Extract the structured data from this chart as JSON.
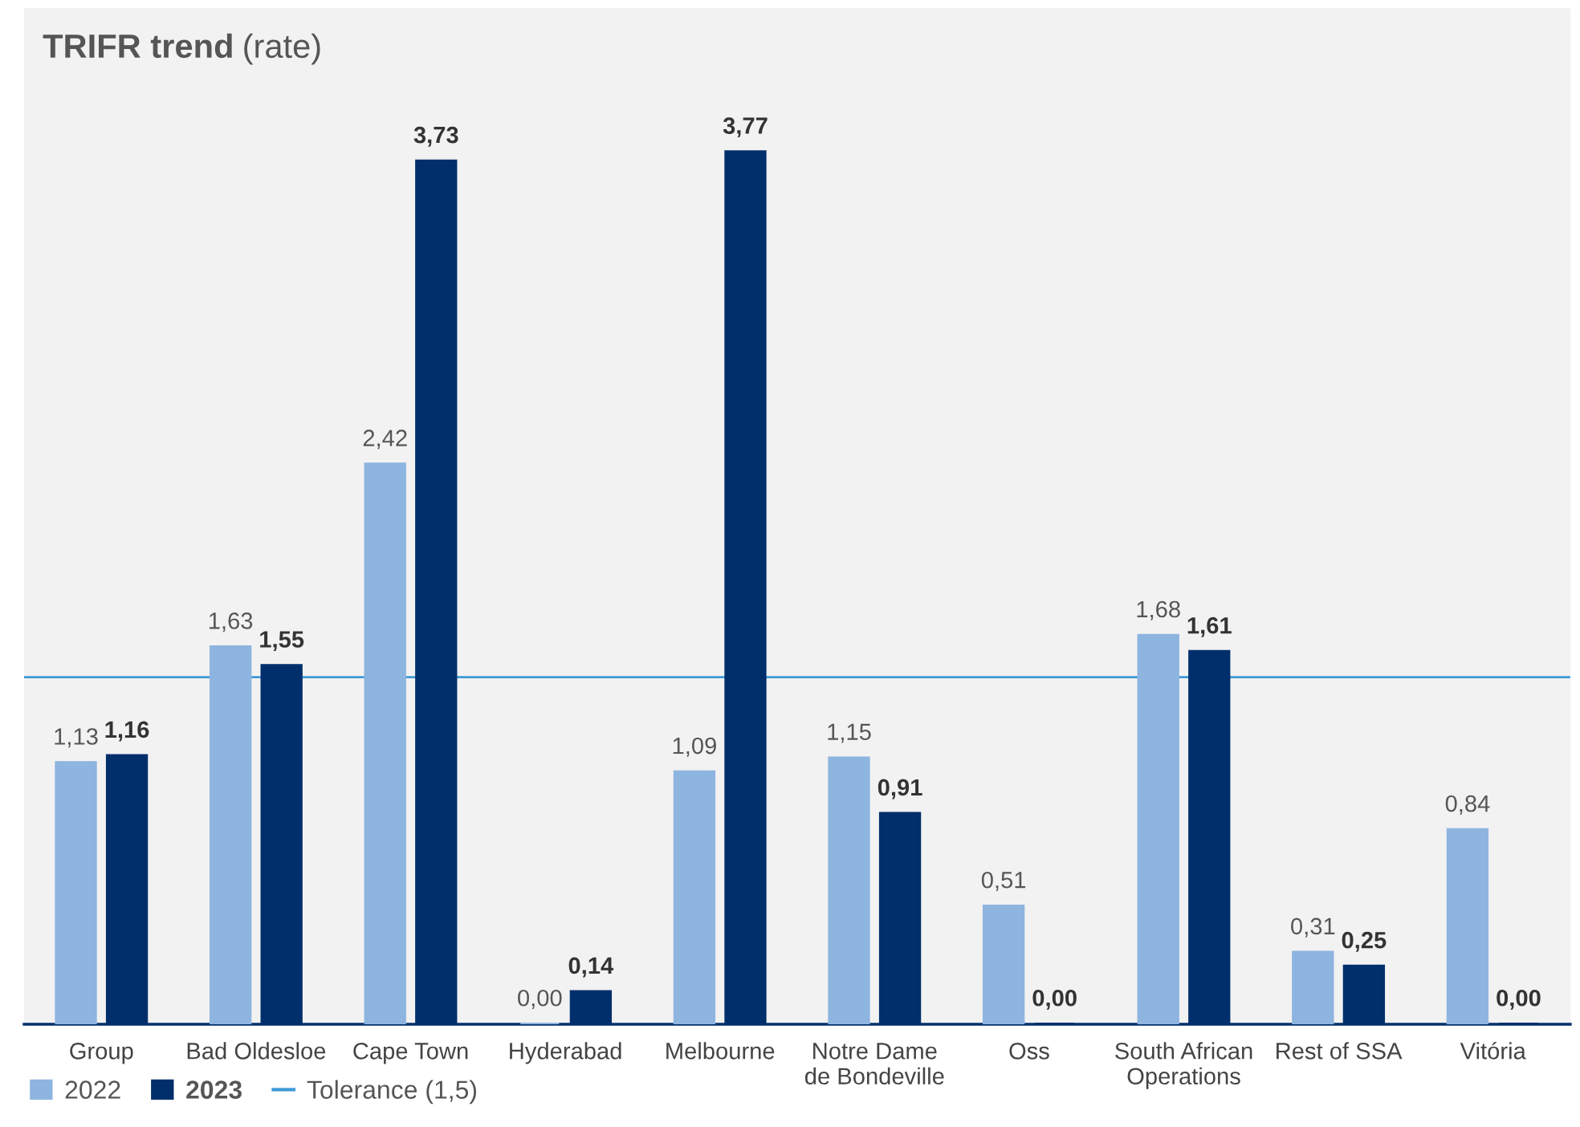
{
  "chart_data": {
    "type": "bar",
    "title": "TRIFR trend",
    "subtitle": "(rate)",
    "categories": [
      "Group",
      "Bad Oldesloe",
      "Cape Town",
      "Hyderabad",
      "Melbourne",
      "Notre Dame\nde Bondeville",
      "Oss",
      "South African\nOperations",
      "Rest of SSA",
      "Vitória"
    ],
    "series": [
      {
        "name": "2022",
        "color": "#8eb4e0",
        "values": [
          1.13,
          1.63,
          2.42,
          0.0,
          1.09,
          1.15,
          0.51,
          1.68,
          0.31,
          0.84
        ],
        "value_labels": [
          "1,13",
          "1,63",
          "2,42",
          "0,00",
          "1,09",
          "1,15",
          "0,51",
          "1,68",
          "0,31",
          "0,84"
        ]
      },
      {
        "name": "2023",
        "color": "#002f6c",
        "values": [
          1.16,
          1.55,
          3.73,
          0.14,
          3.77,
          0.91,
          0.0,
          1.61,
          0.25,
          0.0
        ],
        "value_labels": [
          "1,16",
          "1,55",
          "3,73",
          "0,14",
          "3,77",
          "0,91",
          "0,00",
          "1,61",
          "0,25",
          "0,00"
        ]
      }
    ],
    "ref_lines": [
      {
        "axis": "y",
        "value": 1.5,
        "label": "Tolerance (1,5)",
        "color": "#3c9ad6",
        "line_style": "solid"
      }
    ],
    "legend": "bottom left",
    "grid": false
  }
}
